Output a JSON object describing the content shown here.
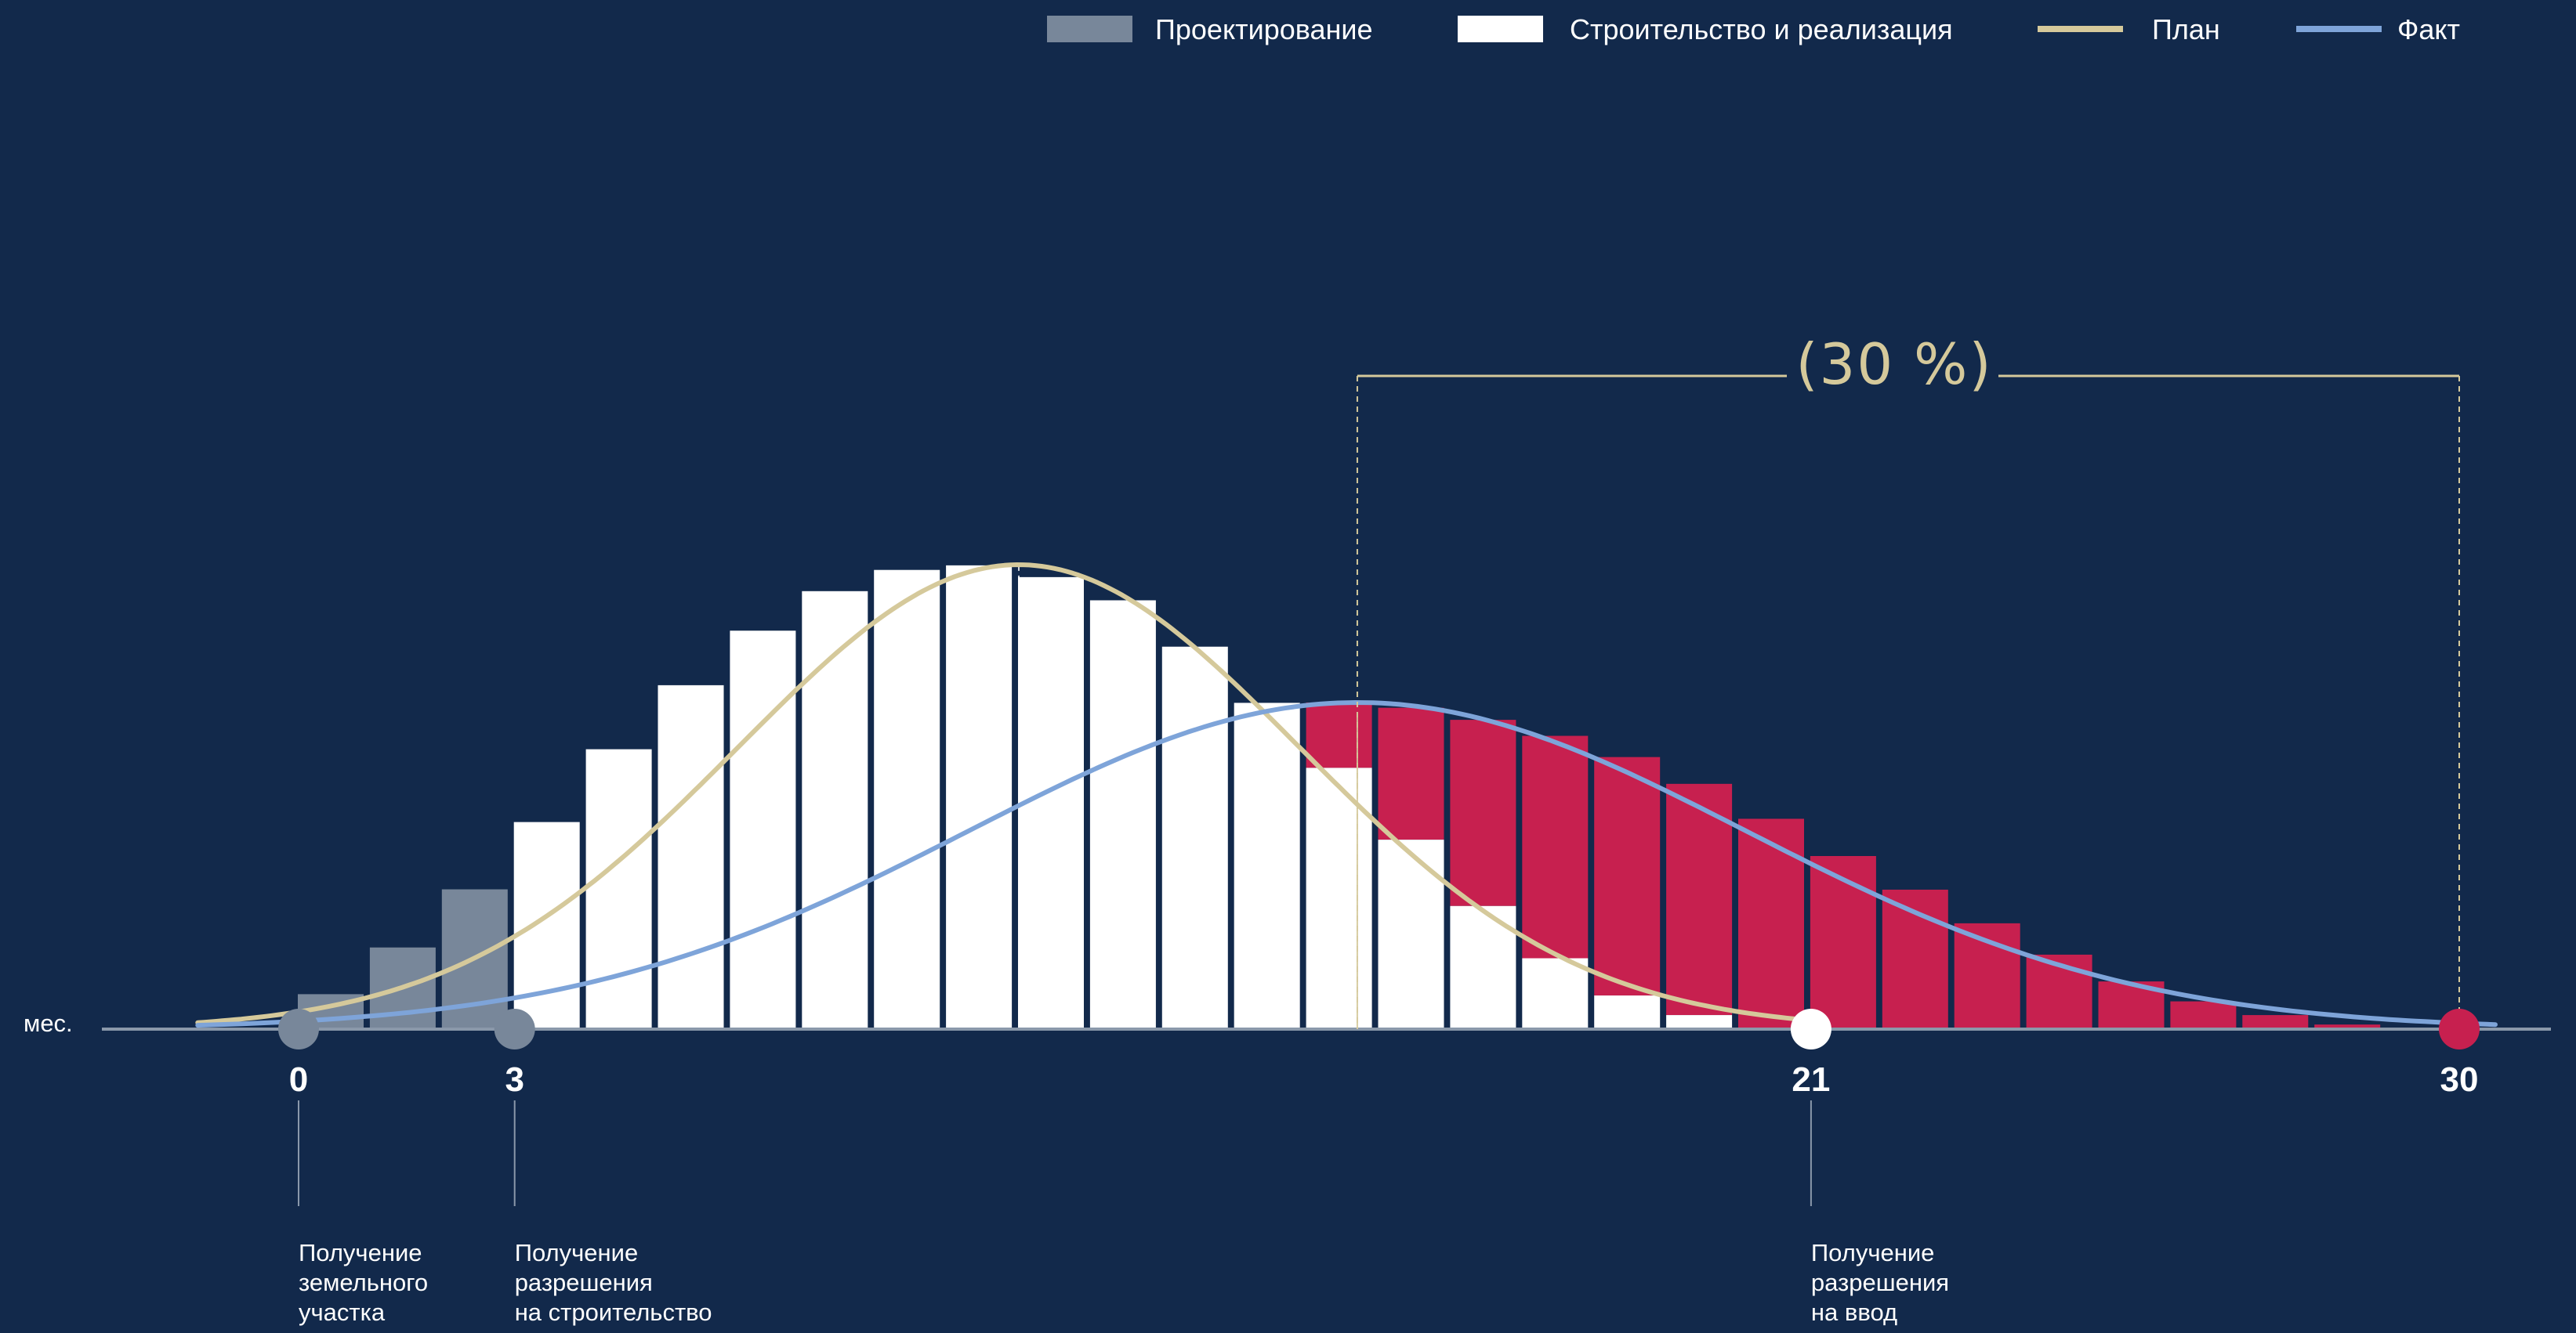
{
  "colors": {
    "background": "#12294b",
    "design": "#78879a",
    "construction": "#ffffff",
    "delay": "#c7204f",
    "plan": "#d5c99b",
    "fact": "#7ea4d9",
    "axis": "#8a98aa",
    "milestone_line": "#8a98aa"
  },
  "legend": {
    "placement": "top-right",
    "items": [
      {
        "key": "design",
        "label": "Проектирование",
        "kind": "rect",
        "color": "#78879a"
      },
      {
        "key": "construction",
        "label": "Строительство и реализация",
        "kind": "rect",
        "color": "#ffffff"
      },
      {
        "key": "plan",
        "label": "План",
        "kind": "line",
        "color": "#d5c99b"
      },
      {
        "key": "fact",
        "label": "Факт",
        "kind": "line",
        "color": "#7ea4d9"
      }
    ]
  },
  "chart_data": {
    "type": "bar",
    "x_unit_label": "мес.",
    "xlim": [
      -1.4,
      31.3
    ],
    "ylim": [
      0,
      100
    ],
    "grid": false,
    "ticks": [
      {
        "value": 0,
        "label": "0"
      },
      {
        "value": 3,
        "label": "3"
      },
      {
        "value": 21,
        "label": "21"
      },
      {
        "value": 30,
        "label": "30"
      }
    ],
    "milestones": [
      {
        "month": 0,
        "marker_color": "#78879a",
        "lines": [
          "Получение",
          "земельного",
          "участка"
        ]
      },
      {
        "month": 3,
        "marker_color": "#78879a",
        "lines": [
          "Получение",
          "разрешения",
          "на строительство"
        ]
      },
      {
        "month": 21,
        "marker_color": "#ffffff",
        "lines": [
          "Получение",
          "разрешения",
          "на ввод"
        ]
      },
      {
        "month": 30,
        "marker_color": "#c7204f",
        "lines": []
      }
    ],
    "bars": {
      "design": [
        {
          "month": 0,
          "value": 10.7
        },
        {
          "month": 1,
          "value": 25.0
        },
        {
          "month": 2,
          "value": 42.8
        }
      ],
      "construction": [
        {
          "month": 3,
          "plan": 63.4,
          "total": 63.4
        },
        {
          "month": 4,
          "plan": 85.7,
          "total": 85.7
        },
        {
          "month": 5,
          "plan": 105.3,
          "total": 105.3
        },
        {
          "month": 6,
          "plan": 122.0,
          "total": 122.0
        },
        {
          "month": 7,
          "plan": 134.1,
          "total": 134.1
        },
        {
          "month": 8,
          "plan": 140.6,
          "total": 140.6
        },
        {
          "month": 9,
          "plan": 142.0,
          "total": 142.0
        },
        {
          "month": 10,
          "plan": 138.4,
          "total": 138.4
        },
        {
          "month": 11,
          "plan": 131.3,
          "total": 131.3
        },
        {
          "month": 12,
          "plan": 117.1,
          "total": 117.1
        },
        {
          "month": 13,
          "plan": 99.9,
          "total": 99.9
        },
        {
          "month": 14,
          "plan": 80.0,
          "total": 100.0
        },
        {
          "month": 15,
          "plan": 58.0,
          "total": 98.4
        },
        {
          "month": 16,
          "plan": 37.7,
          "total": 94.7
        },
        {
          "month": 17,
          "plan": 21.7,
          "total": 89.8
        },
        {
          "month": 18,
          "plan": 10.3,
          "total": 83.3
        },
        {
          "month": 19,
          "plan": 4.3,
          "total": 75.1
        },
        {
          "month": 20,
          "plan": 0.0,
          "total": 64.4
        },
        {
          "month": 21,
          "plan": 0.0,
          "total": 53.0
        },
        {
          "month": 22,
          "plan": 0.0,
          "total": 42.7
        },
        {
          "month": 23,
          "plan": 0.0,
          "total": 32.4
        },
        {
          "month": 24,
          "plan": 0.0,
          "total": 22.8
        },
        {
          "month": 25,
          "plan": 0.0,
          "total": 14.6
        },
        {
          "month": 26,
          "plan": 0.0,
          "total": 8.5
        },
        {
          "month": 27,
          "plan": 0.0,
          "total": 4.3
        },
        {
          "month": 28,
          "plan": 0.0,
          "total": 1.4
        }
      ]
    },
    "series": [
      {
        "name": "План",
        "key": "plan",
        "color": "#d5c99b",
        "peak_month": 10.0,
        "peak_value": 142.2,
        "sigma": 3.9,
        "x_range": [
          -1.4,
          21.0
        ]
      },
      {
        "name": "Факт",
        "key": "fact",
        "color": "#7ea4d9",
        "peak_month": 14.7,
        "peak_value": 100.0,
        "sigma": 5.4,
        "x_range": [
          -1.4,
          30.5
        ]
      }
    ],
    "reference_lines": [
      {
        "month": 10.0,
        "style": "dashed",
        "color": "#ffffff"
      },
      {
        "month": 14.7,
        "style": "dashed",
        "color": "#d5c99b"
      }
    ],
    "annotation": {
      "text": "(30 %)",
      "from_month": 14.7,
      "to_month": 30,
      "color": "#d5c99b"
    }
  }
}
